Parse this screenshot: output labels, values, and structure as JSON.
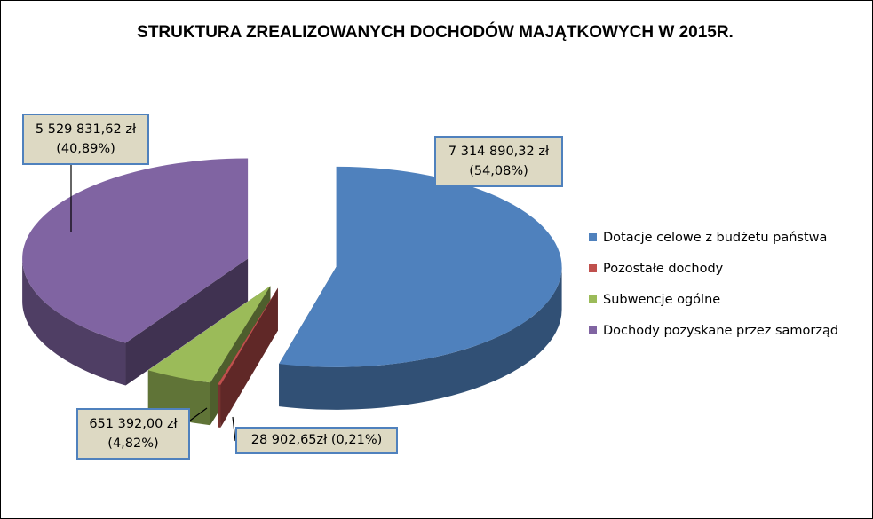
{
  "chart_data": {
    "type": "pie",
    "title": "STRUKTURA ZREALIZOWANYCH  DOCHODÓW MAJĄTKOWYCH  W 2015R.",
    "categories": [
      "Dotacje celowe z budżetu państwa",
      "Pozostałe dochody",
      "Subwencje ogólne",
      "Dochody pozyskane przez samorząd"
    ],
    "values": [
      7314890.32,
      28902.65,
      651392.0,
      5529831.62
    ],
    "percentages": [
      54.08,
      0.21,
      4.82,
      40.89
    ],
    "data_labels": [
      {
        "value": "7 314 890,32 zł",
        "percent": "(54,08%)"
      },
      {
        "value": "28 902,65zł",
        "percent": "(0,21%)"
      },
      {
        "value": "651 392,00 zł",
        "percent": "(4,82%)"
      },
      {
        "value": "5 529 831,62 zł",
        "percent": "(40,89%)"
      }
    ],
    "colors": [
      "#4f81bd",
      "#c0504d",
      "#9bbb59",
      "#8064a2"
    ],
    "legend_position": "right",
    "style": "3d-exploded"
  }
}
